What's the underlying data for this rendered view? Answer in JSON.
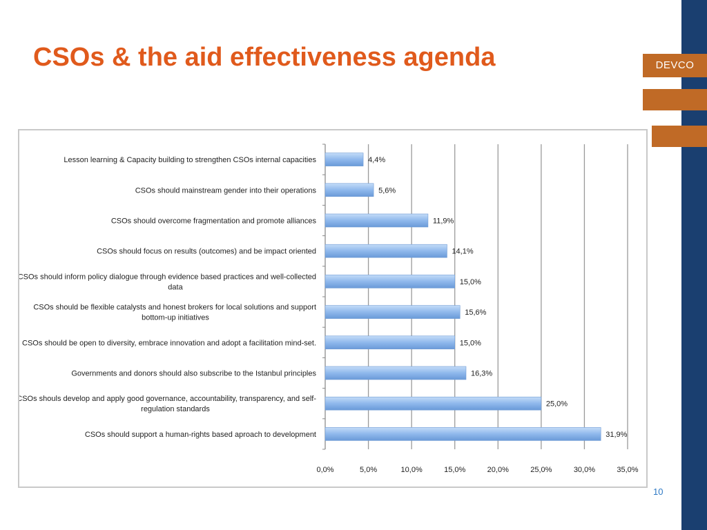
{
  "slide": {
    "title": "CSOs & the aid effectiveness agenda",
    "brand": "DEVCO",
    "page_number": "10"
  },
  "colors": {
    "title": "#e05a1c",
    "sidebar": "#1a3f70",
    "brand_accent": "#c06a26",
    "bar_fill": "#8fb8ec",
    "page_number": "#2d79c4"
  },
  "chart_data": {
    "type": "bar",
    "orientation": "horizontal",
    "categories": [
      "Lesson learning & Capacity building  to strengthen CSOs internal capacities",
      "CSOs should mainstream gender into their operations",
      "CSOs should overcome fragmentation and promote alliances",
      "CSOs should focus on results (outcomes) and be impact oriented",
      "CSOs should inform policy dialogue through evidence based practices and well-collected data",
      "CSOs should be flexible catalysts and honest brokers for local solutions and support bottom-up initiatives",
      "CSOs should be open to diversity, embrace innovation and adopt a facilitation mind-set.",
      "Governments and donors should also subscribe to the Istanbul principles",
      "CSOs shouls develop and apply good governance, accountability, transparency, and self-regulation standards",
      "CSOs should support a human-rights based aproach to development"
    ],
    "category_lines": [
      [
        "Lesson learning & Capacity building  to strengthen CSOs internal capacities"
      ],
      [
        "CSOs should mainstream gender into their operations"
      ],
      [
        "CSOs should overcome fragmentation and promote alliances"
      ],
      [
        "CSOs should focus on results (outcomes) and be impact oriented"
      ],
      [
        "CSOs should inform policy dialogue through evidence based practices and well-collected",
        "data"
      ],
      [
        "CSOs should be flexible catalysts and honest brokers for local solutions and support",
        "bottom-up initiatives"
      ],
      [
        "CSOs should be open to diversity, embrace innovation and adopt a facilitation mind-set."
      ],
      [
        "Governments and donors should also subscribe to the Istanbul principles"
      ],
      [
        "CSOs shouls develop and apply good governance, accountability, transparency, and self-",
        "regulation standards"
      ],
      [
        "CSOs should support a human-rights based aproach to development"
      ]
    ],
    "values": [
      4.4,
      5.6,
      11.9,
      14.1,
      15.0,
      15.6,
      15.0,
      16.3,
      25.0,
      31.9
    ],
    "data_labels": [
      "4,4%",
      "5,6%",
      "11,9%",
      "14,1%",
      "15,0%",
      "15,6%",
      "15,0%",
      "16,3%",
      "25,0%",
      "31,9%"
    ],
    "x_ticks": [
      0,
      5,
      10,
      15,
      20,
      25,
      30,
      35
    ],
    "x_tick_labels": [
      "0,0%",
      "5,0%",
      "10,0%",
      "15,0%",
      "20,0%",
      "25,0%",
      "30,0%",
      "35,0%"
    ],
    "xlim": [
      0,
      35
    ],
    "grid": true,
    "legend": "none",
    "title": "",
    "xlabel": "",
    "ylabel": ""
  }
}
